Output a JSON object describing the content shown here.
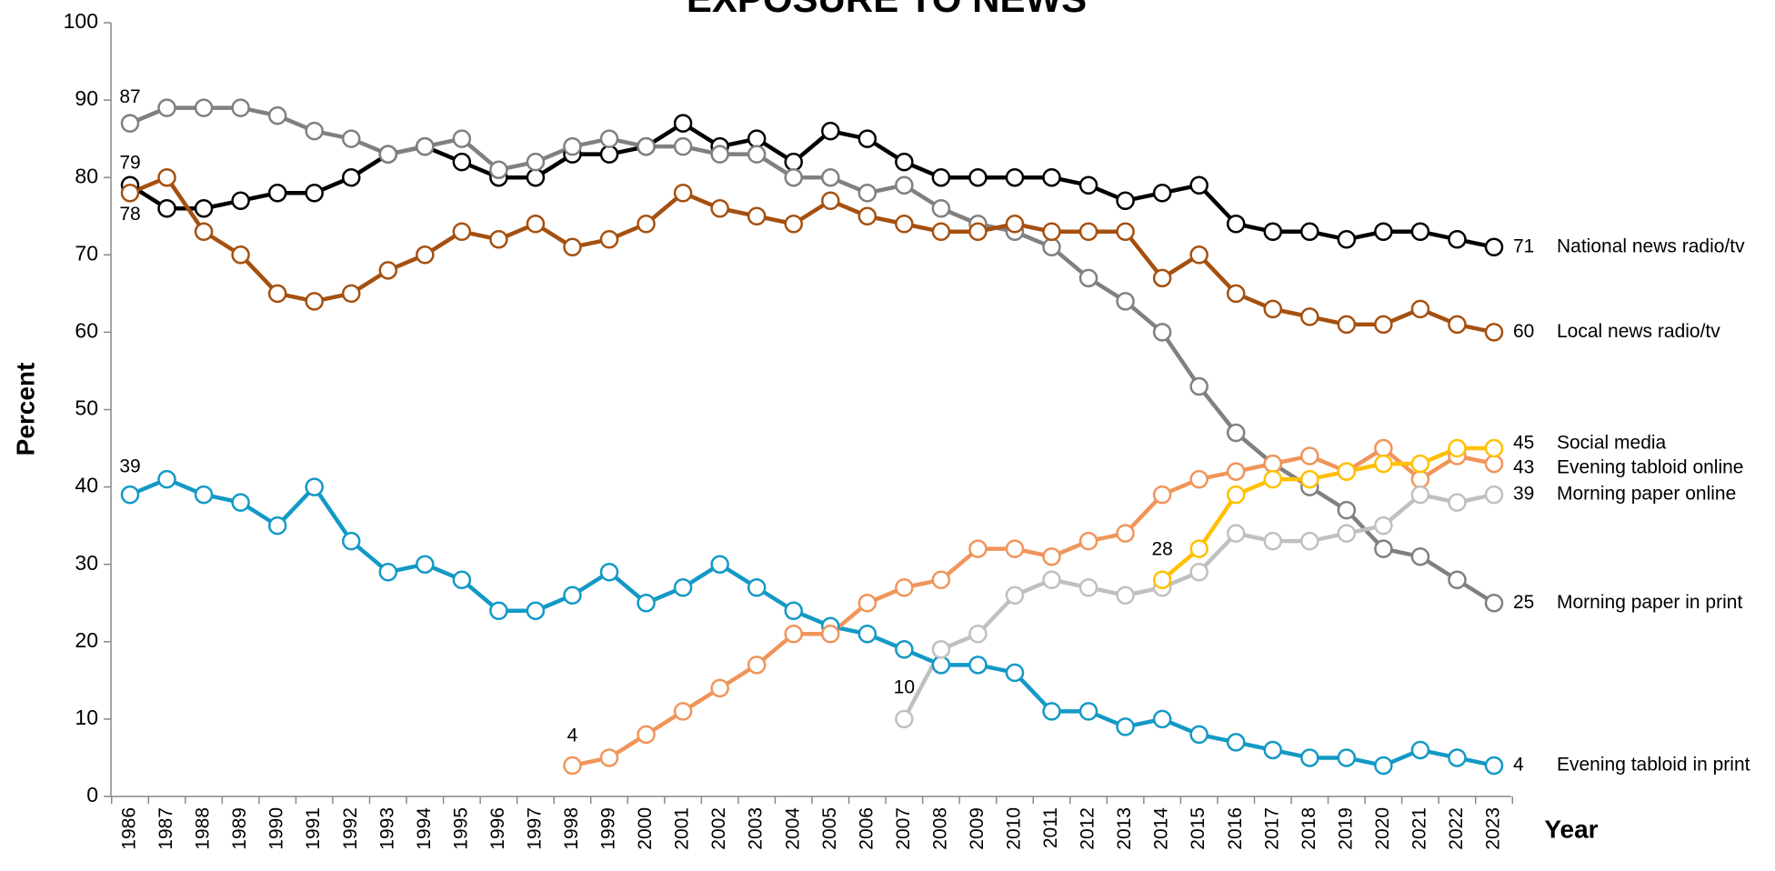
{
  "chart_data": {
    "type": "line",
    "title": "EXPOSURE TO NEWS",
    "xlabel": "Year",
    "ylabel": "Percent",
    "categories": [
      "1986",
      "1987",
      "1988",
      "1989",
      "1990",
      "1991",
      "1992",
      "1993",
      "1994",
      "1995",
      "1996",
      "1997",
      "1998",
      "1999",
      "2000",
      "2001",
      "2002",
      "2003",
      "2004",
      "2005",
      "2006",
      "2007",
      "2008",
      "2009",
      "2010",
      "2011",
      "2012",
      "2013",
      "2014",
      "2015",
      "2016",
      "2017",
      "2018",
      "2019",
      "2020",
      "2021",
      "2022",
      "2023"
    ],
    "ylim": [
      0,
      100
    ],
    "yticks": [
      0,
      10,
      20,
      30,
      40,
      50,
      60,
      70,
      80,
      90,
      100
    ],
    "series": [
      {
        "name": "National news radio/tv",
        "color": "#000000",
        "values": [
          79,
          76,
          76,
          77,
          78,
          78,
          80,
          83,
          84,
          82,
          80,
          80,
          83,
          83,
          84,
          87,
          84,
          85,
          82,
          86,
          85,
          82,
          80,
          80,
          80,
          80,
          79,
          77,
          78,
          79,
          74,
          73,
          73,
          72,
          73,
          73,
          72,
          71
        ]
      },
      {
        "name": "Morning paper in print",
        "color": "#808080",
        "values": [
          87,
          89,
          89,
          89,
          88,
          86,
          85,
          83,
          84,
          85,
          81,
          82,
          84,
          85,
          84,
          84,
          83,
          83,
          80,
          80,
          78,
          79,
          76,
          74,
          73,
          71,
          67,
          64,
          60,
          53,
          47,
          43,
          40,
          37,
          32,
          31,
          28,
          25
        ]
      },
      {
        "name": "Local news radio/tv",
        "color": "#a5500f",
        "values": [
          78,
          80,
          73,
          70,
          65,
          64,
          65,
          68,
          70,
          73,
          72,
          74,
          71,
          72,
          74,
          78,
          76,
          75,
          74,
          77,
          75,
          74,
          73,
          73,
          74,
          73,
          73,
          73,
          67,
          70,
          65,
          63,
          62,
          61,
          61,
          63,
          61,
          60
        ]
      },
      {
        "name": "Evening tabloid in print",
        "color": "#1399c6",
        "values": [
          39,
          41,
          39,
          38,
          35,
          40,
          33,
          29,
          30,
          28,
          24,
          24,
          26,
          29,
          25,
          27,
          30,
          27,
          24,
          22,
          21,
          19,
          17,
          17,
          16,
          11,
          11,
          9,
          10,
          8,
          7,
          6,
          5,
          5,
          4,
          6,
          5,
          4
        ]
      },
      {
        "name": "Evening tabloid online",
        "color": "#f0955a",
        "values": [
          null,
          null,
          null,
          null,
          null,
          null,
          null,
          null,
          null,
          null,
          null,
          null,
          4,
          5,
          8,
          11,
          14,
          17,
          21,
          21,
          25,
          27,
          28,
          32,
          32,
          31,
          33,
          34,
          39,
          41,
          42,
          43,
          44,
          42,
          45,
          41,
          44,
          43
        ]
      },
      {
        "name": "Morning paper online",
        "color": "#c0c0c0",
        "values": [
          null,
          null,
          null,
          null,
          null,
          null,
          null,
          null,
          null,
          null,
          null,
          null,
          null,
          null,
          null,
          null,
          null,
          null,
          null,
          null,
          null,
          10,
          19,
          21,
          26,
          28,
          27,
          26,
          27,
          29,
          34,
          33,
          33,
          34,
          35,
          39,
          38,
          39
        ]
      },
      {
        "name": "Social media",
        "color": "#ffc000",
        "values": [
          null,
          null,
          null,
          null,
          null,
          null,
          null,
          null,
          null,
          null,
          null,
          null,
          null,
          null,
          null,
          null,
          null,
          null,
          null,
          null,
          null,
          null,
          null,
          null,
          null,
          null,
          null,
          null,
          28,
          32,
          39,
          41,
          41,
          42,
          43,
          43,
          45,
          45
        ]
      }
    ]
  }
}
